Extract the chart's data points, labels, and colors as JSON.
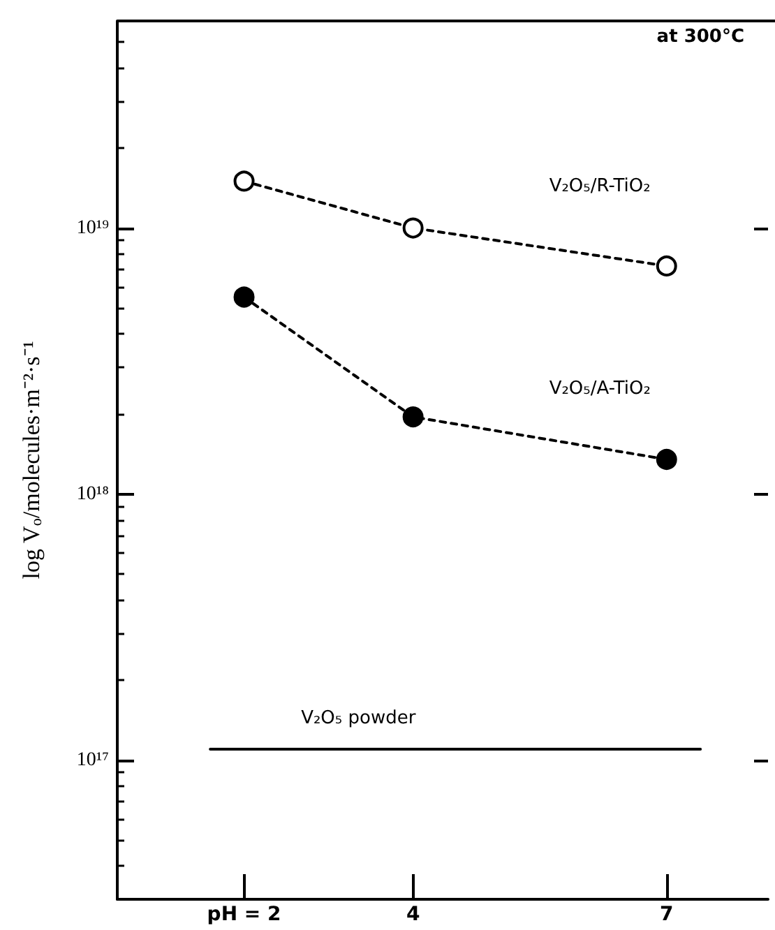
{
  "chart_data": {
    "type": "line",
    "ylabel": "log V$_{o}$/molecules·m⁻²·s⁻¹",
    "annotations": [
      "at 300°C"
    ],
    "x": [
      2,
      4,
      7
    ],
    "series": [
      {
        "name": "V₂O₅/R-TiO₂",
        "color": "#000000",
        "marker": "open circle",
        "line_style": "dashed",
        "values": [
          1.5e+19,
          1e+19,
          7.2e+18
        ]
      },
      {
        "name": "V₂O₅/A-TiO₂",
        "color": "#000000",
        "marker": "circle",
        "line_style": "dashed",
        "values": [
          5.5e+18,
          1.95e+18,
          1.35e+18
        ]
      },
      {
        "name": "V₂O₅ powder",
        "color": "#000000",
        "marker": "none",
        "line_style": "solid",
        "x": [
          1.6,
          7.4
        ],
        "values": [
          1.1e+17,
          1.1e+17
        ]
      }
    ],
    "xlim": [
      0.5,
      8.2
    ],
    "xticks": [
      {
        "value": 2,
        "label": "pH = 2"
      },
      4,
      7
    ],
    "ylim": [
      3e+16,
      6e+19
    ],
    "yticks": [
      {
        "value": 1e+17,
        "label": "10¹⁷"
      },
      {
        "value": 1e+18,
        "label": "10¹⁸"
      },
      {
        "value": 1e+19,
        "label": "10¹⁹"
      }
    ],
    "log": "y",
    "grid": false,
    "legend": false
  }
}
